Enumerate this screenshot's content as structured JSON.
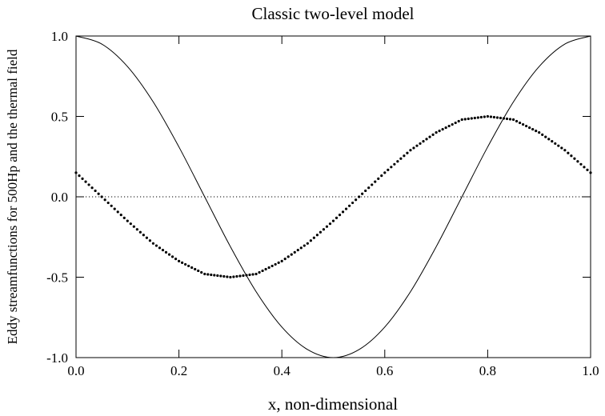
{
  "chart_data": {
    "type": "line",
    "title": "Classic two-level model",
    "xlabel": "x, non-dimensional",
    "ylabel": "Eddy streamfunctions for 500Hp and the thermal field",
    "xlim": [
      0.0,
      1.0
    ],
    "ylim": [
      -1.0,
      1.0
    ],
    "x_ticks": [
      "0.0",
      "0.2",
      "0.4",
      "0.6",
      "0.8",
      "1.0"
    ],
    "y_ticks": [
      "-1.0",
      "-0.5",
      "0.0",
      "0.5",
      "1.0"
    ],
    "grid": false,
    "legend": false,
    "reference_line": {
      "y": 0.0,
      "style": "dotted"
    },
    "series": [
      {
        "style": "solid",
        "x": [
          0.0,
          0.05,
          0.1,
          0.15,
          0.2,
          0.25,
          0.3,
          0.35,
          0.4,
          0.45,
          0.5,
          0.55,
          0.6,
          0.65,
          0.7,
          0.75,
          0.8,
          0.85,
          0.9,
          0.95,
          1.0
        ],
        "y": [
          1.0,
          0.95,
          0.81,
          0.59,
          0.31,
          0.0,
          -0.31,
          -0.59,
          -0.81,
          -0.95,
          -1.0,
          -0.95,
          -0.81,
          -0.59,
          -0.31,
          0.0,
          0.31,
          0.59,
          0.81,
          0.95,
          1.0
        ]
      },
      {
        "style": "dotted",
        "x": [
          0.0,
          0.05,
          0.1,
          0.15,
          0.2,
          0.25,
          0.3,
          0.35,
          0.4,
          0.45,
          0.5,
          0.55,
          0.6,
          0.65,
          0.7,
          0.75,
          0.8,
          0.85,
          0.9,
          0.95,
          1.0
        ],
        "y": [
          0.15,
          0.0,
          -0.15,
          -0.29,
          -0.4,
          -0.48,
          -0.5,
          -0.48,
          -0.4,
          -0.29,
          -0.15,
          0.0,
          0.15,
          0.29,
          0.4,
          0.48,
          0.5,
          0.48,
          0.4,
          0.29,
          0.15
        ]
      }
    ]
  }
}
